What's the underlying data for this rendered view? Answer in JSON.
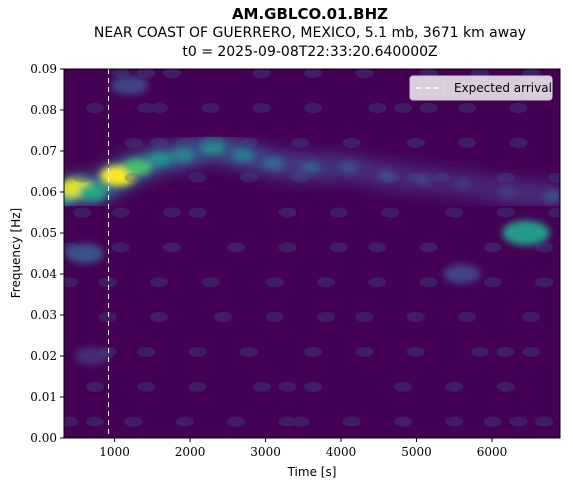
{
  "header": {
    "station": "AM.GBLCO.01.BHZ",
    "event": "NEAR COAST OF GUERRERO, MEXICO, 5.1 mb, 3671 km away",
    "t0": "t0 = 2025-09-08T22:33:20.640000Z"
  },
  "chart_data": {
    "type": "heatmap",
    "xlabel": "Time [s]",
    "ylabel": "Frequency [Hz]",
    "xlim": [
      330,
      6900
    ],
    "ylim": [
      0,
      0.09
    ],
    "xticks": [
      1000,
      2000,
      3000,
      4000,
      5000,
      6000
    ],
    "yticks": [
      0.0,
      0.01,
      0.02,
      0.03,
      0.04,
      0.05,
      0.06,
      0.07,
      0.08,
      0.09
    ],
    "xtick_labels": [
      "1000",
      "2000",
      "3000",
      "4000",
      "5000",
      "6000"
    ],
    "ytick_labels": [
      "0.00",
      "0.01",
      "0.02",
      "0.03",
      "0.04",
      "0.05",
      "0.06",
      "0.07",
      "0.08",
      "0.09"
    ],
    "colormap": "viridis",
    "expected_arrival_x": 920,
    "legend": {
      "label": "Expected arrival",
      "position": "upper right"
    },
    "grid": false,
    "energy_ridge": [
      {
        "x": 330,
        "y": 0.059,
        "v": 0.55
      },
      {
        "x": 500,
        "y": 0.061,
        "v": 0.95
      },
      {
        "x": 700,
        "y": 0.06,
        "v": 0.6
      },
      {
        "x": 1050,
        "y": 0.064,
        "v": 1.0
      },
      {
        "x": 1300,
        "y": 0.066,
        "v": 0.7
      },
      {
        "x": 1600,
        "y": 0.068,
        "v": 0.5
      },
      {
        "x": 1900,
        "y": 0.069,
        "v": 0.45
      },
      {
        "x": 2300,
        "y": 0.071,
        "v": 0.5
      },
      {
        "x": 2700,
        "y": 0.069,
        "v": 0.42
      },
      {
        "x": 3100,
        "y": 0.067,
        "v": 0.35
      },
      {
        "x": 3600,
        "y": 0.066,
        "v": 0.3
      },
      {
        "x": 4100,
        "y": 0.066,
        "v": 0.25
      },
      {
        "x": 4600,
        "y": 0.064,
        "v": 0.22
      },
      {
        "x": 5100,
        "y": 0.063,
        "v": 0.2
      },
      {
        "x": 5600,
        "y": 0.062,
        "v": 0.18
      },
      {
        "x": 6200,
        "y": 0.06,
        "v": 0.2
      },
      {
        "x": 6800,
        "y": 0.059,
        "v": 0.25
      }
    ],
    "secondary_features": [
      {
        "x": 6450,
        "y": 0.05,
        "v": 0.55
      },
      {
        "x": 5600,
        "y": 0.04,
        "v": 0.2
      },
      {
        "x": 600,
        "y": 0.045,
        "v": 0.25
      },
      {
        "x": 700,
        "y": 0.02,
        "v": 0.12
      },
      {
        "x": 1200,
        "y": 0.086,
        "v": 0.2
      }
    ]
  }
}
